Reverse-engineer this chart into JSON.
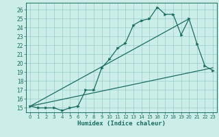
{
  "xlabel": "Humidex (Indice chaleur)",
  "bg_color": "#cceee8",
  "grid_color": "#99cccc",
  "line_color": "#1a6b60",
  "xlim": [
    -0.5,
    23.5
  ],
  "ylim": [
    14.5,
    26.8
  ],
  "xticks": [
    0,
    1,
    2,
    3,
    4,
    5,
    6,
    7,
    8,
    9,
    10,
    11,
    12,
    13,
    14,
    15,
    16,
    17,
    18,
    19,
    20,
    21,
    22,
    23
  ],
  "yticks": [
    15,
    16,
    17,
    18,
    19,
    20,
    21,
    22,
    23,
    24,
    25,
    26
  ],
  "main_x": [
    0,
    1,
    2,
    3,
    4,
    5,
    6,
    7,
    8,
    9,
    10,
    11,
    12,
    13,
    14,
    15,
    16,
    17,
    18,
    19,
    20,
    21,
    22,
    23
  ],
  "main_y": [
    15.2,
    15.0,
    15.0,
    15.0,
    14.7,
    15.0,
    15.2,
    17.0,
    17.0,
    19.5,
    20.5,
    21.7,
    22.3,
    24.3,
    24.8,
    25.0,
    26.3,
    25.5,
    25.5,
    23.2,
    25.0,
    22.2,
    19.7,
    19.2
  ],
  "line2_x": [
    0,
    23
  ],
  "line2_y": [
    15.2,
    19.5
  ],
  "line3_x": [
    0,
    20
  ],
  "line3_y": [
    15.2,
    25.0
  ]
}
